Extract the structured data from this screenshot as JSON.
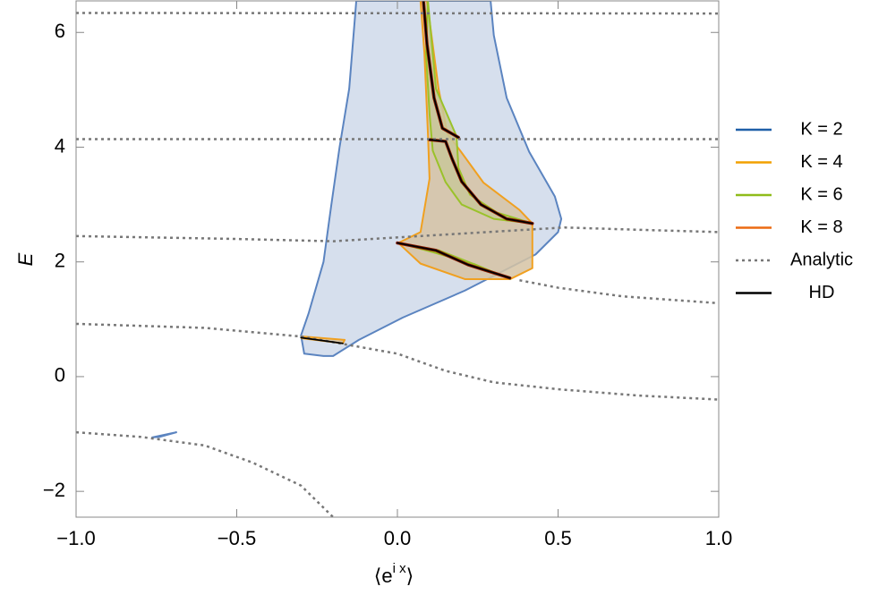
{
  "chart_data": {
    "type": "line",
    "xlabel": {
      "open": "⟨e",
      "sup": "i x",
      "close": "⟩"
    },
    "ylabel": "E",
    "xlim": [
      -1,
      1
    ],
    "ylim": [
      -2.45,
      6.55
    ],
    "xticks": [
      {
        "value": -1,
        "label": "−1.0"
      },
      {
        "value": -0.5,
        "label": "−0.5"
      },
      {
        "value": 0,
        "label": "0.0"
      },
      0.5,
      {
        "value": 1,
        "label": "1.0"
      }
    ],
    "yticks": [
      {
        "value": -2,
        "label": "−2"
      },
      0,
      2,
      4,
      6
    ],
    "legend": "right",
    "series": [
      {
        "name": "K = 2",
        "color": "#1f5fa8",
        "stroke": "#5b84c0",
        "fill": "#cfd9ea",
        "kind": "region",
        "shapes": [
          {
            "x": [
              -0.128,
              -0.15,
              -0.18,
              -0.206,
              -0.23,
              -0.276,
              -0.3,
              -0.29,
              -0.23,
              -0.2,
              -0.12,
              0.017,
              0.21,
              0.43,
              0.5,
              0.51,
              0.49,
              0.41,
              0.34,
              0.3,
              0.29
            ],
            "values": [
              6.55,
              5.02,
              4.0,
              2.98,
              2.0,
              1.11,
              0.72,
              0.4,
              0.36,
              0.36,
              0.64,
              1.03,
              1.5,
              2.13,
              2.52,
              2.75,
              3.14,
              3.92,
              4.86,
              5.95,
              6.55
            ]
          },
          {
            "x": [
              -0.763,
              -0.688,
              -0.74
            ],
            "values": [
              -1.06,
              -0.97,
              -1.05
            ]
          }
        ]
      },
      {
        "name": "K = 4",
        "color": "#f2a100",
        "stroke": "#f0a020",
        "fill": "#d6c3a3",
        "kind": "region",
        "shapes": [
          {
            "x": [
              0.072,
              0.092,
              0.128,
              0.156,
              0.198,
              0.268,
              0.379,
              0.42,
              0.42,
              0.351,
              0.21,
              0.072,
              0.003,
              0.072,
              0.1,
              0.095,
              0.084
            ],
            "values": [
              6.55,
              6.55,
              5.02,
              4.23,
              3.92,
              3.38,
              2.91,
              2.67,
              1.89,
              1.7,
              1.7,
              1.97,
              2.33,
              2.52,
              3.45,
              4.23,
              5.64
            ]
          },
          {
            "x": [
              -0.298,
              -0.164,
              -0.17,
              -0.298
            ],
            "values": [
              0.7,
              0.64,
              0.58,
              0.67
            ]
          }
        ]
      },
      {
        "name": "K = 6",
        "color": "#8fbc1a",
        "stroke": "#9ac22a",
        "fill": "#c9c79a",
        "kind": "region",
        "shapes": [
          {
            "x": [
              0.095,
              0.12,
              0.184,
              0.19,
              0.226,
              0.31,
              0.42,
              0.3,
              0.2,
              0.15,
              0.11,
              0.1,
              0.089
            ],
            "values": [
              6.55,
              5.02,
              4.19,
              3.64,
              3.17,
              2.86,
              2.67,
              2.75,
              3.0,
              3.39,
              3.94,
              4.58,
              5.64
            ]
          },
          {
            "x": [
              0.003,
              0.13,
              0.27,
              0.351,
              0.24,
              0.11
            ],
            "values": [
              2.33,
              2.2,
              1.89,
              1.7,
              1.96,
              2.17
            ]
          }
        ]
      },
      {
        "name": "K = 8",
        "color": "#ec6a12",
        "stroke": "#8b1a00",
        "kind": "curve",
        "width": 3.5,
        "shapes": [
          {
            "x": [
              0.081,
              0.092,
              0.114,
              0.14,
              0.19
            ],
            "values": [
              6.55,
              5.8,
              4.86,
              4.33,
              4.17
            ]
          },
          {
            "x": [
              0.1,
              0.15,
              0.17,
              0.2,
              0.26,
              0.34,
              0.42
            ],
            "values": [
              4.13,
              4.1,
              3.8,
              3.4,
              3.0,
              2.75,
              2.67
            ]
          },
          {
            "x": [
              0.0,
              0.12,
              0.22,
              0.35
            ],
            "values": [
              2.33,
              2.2,
              1.95,
              1.72
            ]
          }
        ]
      },
      {
        "name": "Analytic",
        "color": "#777777",
        "kind": "curve",
        "dashed": true,
        "width": 2.5,
        "shapes": [
          {
            "x": [
              -1,
              1
            ],
            "values": [
              6.34,
              6.33
            ]
          },
          {
            "x": [
              -1,
              1
            ],
            "values": [
              4.14,
              4.14
            ]
          },
          {
            "x": [
              -1,
              -0.5,
              -0.2,
              0.52,
              0.75,
              1
            ],
            "values": [
              2.45,
              2.4,
              2.36,
              2.6,
              2.56,
              2.52
            ]
          },
          {
            "x": [
              0.38,
              0.5,
              0.7,
              1
            ],
            "values": [
              1.68,
              1.55,
              1.4,
              1.28
            ]
          },
          {
            "x": [
              -1,
              -0.6,
              -0.3,
              -0.15,
              0,
              0.15,
              0.3,
              0.5,
              0.75,
              1
            ],
            "values": [
              0.92,
              0.85,
              0.7,
              0.55,
              0.4,
              0.1,
              -0.1,
              -0.22,
              -0.33,
              -0.4
            ]
          },
          {
            "x": [
              -1,
              -0.8,
              -0.6,
              -0.45,
              -0.3,
              -0.2
            ],
            "values": [
              -0.97,
              -1.05,
              -1.2,
              -1.5,
              -1.9,
              -2.45
            ]
          }
        ]
      },
      {
        "name": "HD",
        "color": "#000000",
        "kind": "curve",
        "width": 1.8,
        "shapes": [
          {
            "x": [
              0.081,
              0.092,
              0.114,
              0.14,
              0.19
            ],
            "values": [
              6.55,
              5.8,
              4.86,
              4.33,
              4.17
            ]
          },
          {
            "x": [
              0.1,
              0.15,
              0.17,
              0.2,
              0.26,
              0.34,
              0.42
            ],
            "values": [
              4.13,
              4.1,
              3.8,
              3.4,
              3.0,
              2.75,
              2.67
            ]
          },
          {
            "x": [
              0.0,
              0.12,
              0.22,
              0.35
            ],
            "values": [
              2.33,
              2.2,
              1.95,
              1.72
            ]
          },
          {
            "x": [
              -0.3,
              -0.17
            ],
            "values": [
              0.68,
              0.58
            ]
          }
        ]
      }
    ]
  }
}
